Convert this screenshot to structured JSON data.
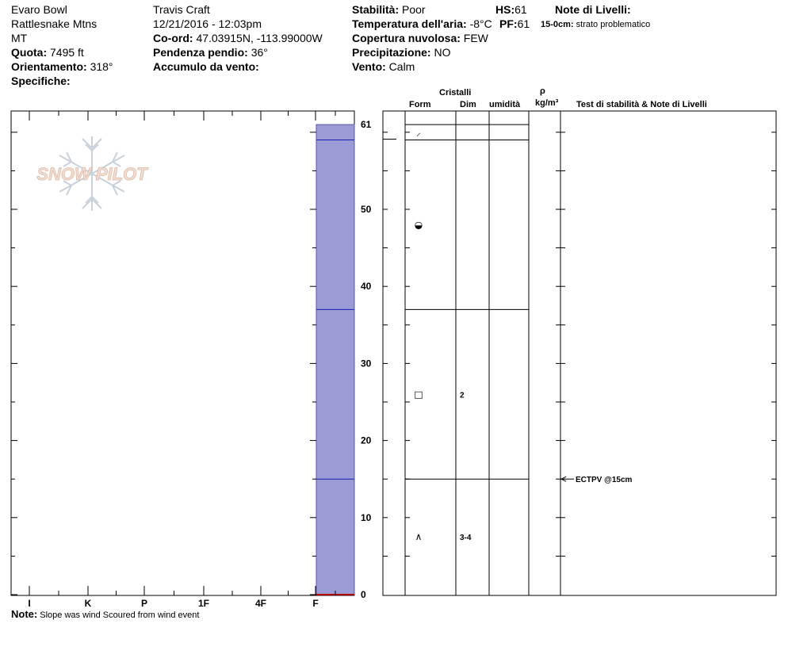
{
  "header": {
    "location": "Evaro Bowl",
    "range": "Rattlesnake Mtns",
    "state": "MT",
    "elevation_label": "Quota:",
    "elevation_value": "7495 ft",
    "aspect_label": "Orientamento:",
    "aspect_value": "318°",
    "specifics_label": "Specifiche:",
    "observer": "Travis  Craft",
    "datetime": "12/21/2016 - 12:03pm",
    "coord_label": "Co-ord:",
    "coord_value": "47.03915N, -113.99000W",
    "slope_label": "Pendenza pendio:",
    "slope_value": "36°",
    "wind_loading_label": "Accumulo da vento:",
    "stability_label": "Stabilità:",
    "stability_value": "Poor",
    "air_temp_label": "Temperatura dell'aria:",
    "air_temp_value": "-8°C",
    "cloud_label": "Copertura nuvolosa:",
    "cloud_value": "FEW",
    "precip_label": "Precipitazione:",
    "precip_value": "NO",
    "wind_label": "Vento:",
    "wind_value": "Calm",
    "hs_label": "HS:",
    "hs_value": "61",
    "pf_label": "PF:",
    "pf_value": "61",
    "layer_notes_title": "Note di Livelli:",
    "layer_note_depth": "15-0cm:",
    "layer_note_text": "strato problematico"
  },
  "logo_text": "SNOW PILOT",
  "columns": {
    "crystals": "Cristalli",
    "form": "Form",
    "size": "Dim",
    "moisture": "umidità",
    "rho": "ρ",
    "density_unit": "kg/m³",
    "tests": "Test di stabilità & Note di Livelli"
  },
  "footer": {
    "note_label": "Note:",
    "note_text": "Slope was wind Scoured from wind event"
  },
  "chart_data": {
    "type": "snow-profile",
    "hardness_categories": [
      "I",
      "K",
      "P",
      "1F",
      "4F",
      "F"
    ],
    "depth_ticks": [
      0,
      10,
      20,
      30,
      40,
      50,
      61
    ],
    "depth_range_cm": [
      0,
      61
    ],
    "total_depth_cm": 61,
    "layer_boundaries_cm": [
      15,
      37,
      59,
      61
    ],
    "layers": [
      {
        "top": 61,
        "bottom": 59,
        "form_symbol": "⸝",
        "size": ""
      },
      {
        "top": 59,
        "bottom": 37,
        "form_symbol": "◒",
        "size": ""
      },
      {
        "top": 37,
        "bottom": 15,
        "form_symbol": "□",
        "size": "2"
      },
      {
        "top": 15,
        "bottom": 0,
        "form_symbol": "∧",
        "size": "3-4"
      }
    ],
    "stability_tests": [
      {
        "depth": 15,
        "label": "ECTPV @15cm"
      }
    ]
  }
}
